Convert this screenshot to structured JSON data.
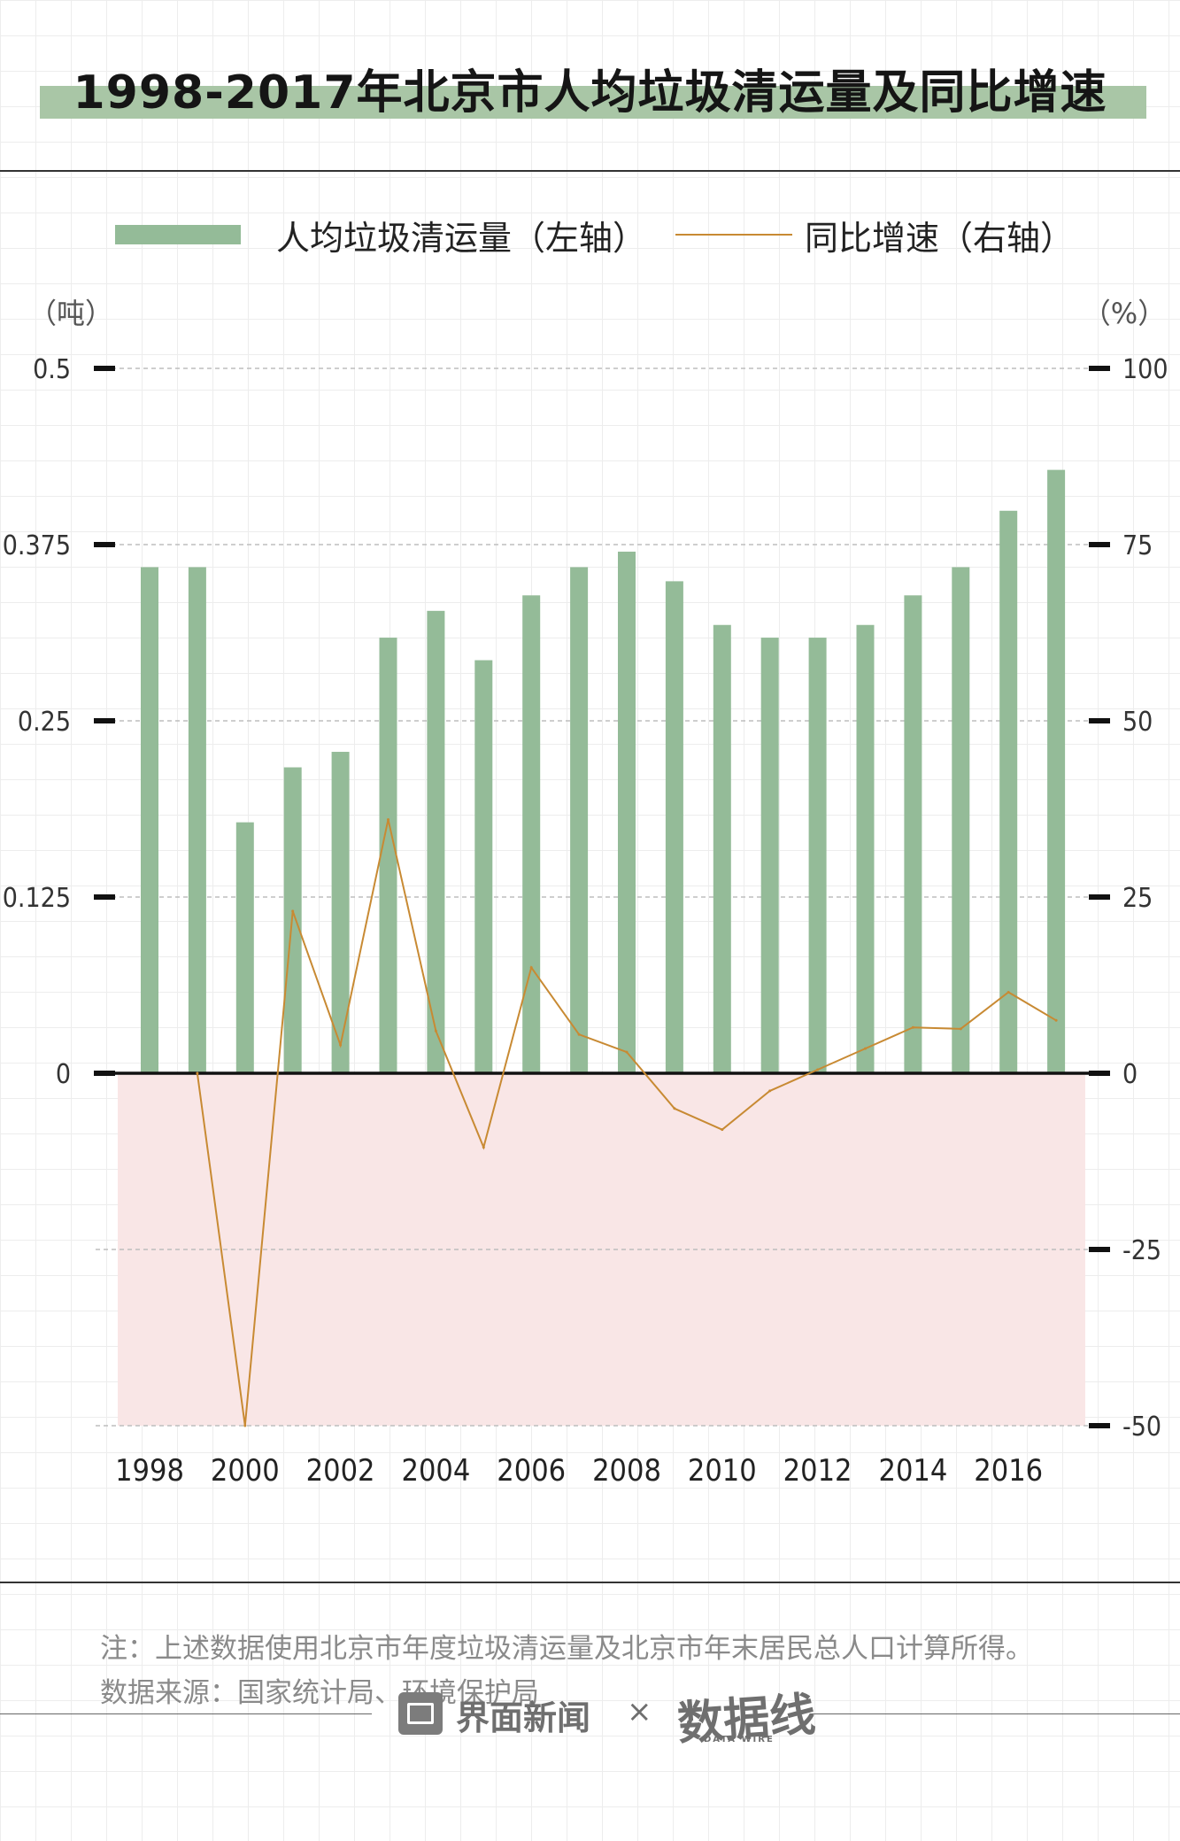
{
  "header": {
    "title": "1998-2017年北京市人均垃圾清运量及同比增速"
  },
  "legend": {
    "bar_label": "人均垃圾清运量（左轴）",
    "line_label": "同比增速（右轴）"
  },
  "axes": {
    "left_unit": "（吨）",
    "right_unit": "（%）"
  },
  "colors": {
    "bar": "#94bb98",
    "line": "#c88a33",
    "negative_band": "#f9e6e6",
    "title_band": "#a9c6a6"
  },
  "chart_data": {
    "type": "bar+line",
    "categories": [
      "1998",
      "1999",
      "2000",
      "2001",
      "2002",
      "2003",
      "2004",
      "2005",
      "2006",
      "2007",
      "2008",
      "2009",
      "2010",
      "2011",
      "2012",
      "2013",
      "2014",
      "2015",
      "2016",
      "2017"
    ],
    "x_tick_labels": [
      "1998",
      "2000",
      "2002",
      "2004",
      "2006",
      "2008",
      "2010",
      "2012",
      "2014",
      "2016"
    ],
    "series": [
      {
        "name": "人均垃圾清运量（左轴）",
        "kind": "bar",
        "axis": "left",
        "values": [
          0.359,
          0.359,
          0.178,
          0.217,
          0.228,
          0.309,
          0.328,
          0.293,
          0.339,
          0.359,
          0.37,
          0.349,
          0.318,
          0.309,
          0.309,
          0.318,
          0.339,
          0.359,
          0.399,
          0.428
        ]
      },
      {
        "name": "同比增速（右轴）",
        "kind": "line",
        "axis": "right",
        "values": [
          null,
          0.0,
          -50.0,
          23.0,
          4.0,
          36.0,
          6.0,
          -10.5,
          15.0,
          5.5,
          3.0,
          -5.0,
          -8.0,
          -2.5,
          0.5,
          3.5,
          6.5,
          6.3,
          11.5,
          7.5
        ]
      }
    ],
    "left_ticks": [
      "0.5",
      "0.375",
      "0.25",
      "0.125",
      "0"
    ],
    "right_ticks": [
      "100",
      "75",
      "50",
      "25",
      "0",
      "-25",
      "-50"
    ],
    "ylim_left": [
      -0.25,
      0.5
    ],
    "ylim_right": [
      -50,
      100
    ],
    "grid": true
  },
  "footer": {
    "note": "注：上述数据使用北京市年度垃圾清运量及北京市年末居民总人口计算所得。",
    "source": "数据来源：国家统计局、环境保护局",
    "brand_name": "界面新闻",
    "brand_times": "×",
    "brand_logo": "数据线",
    "brand_logo_sub": "DATA WIRE"
  }
}
